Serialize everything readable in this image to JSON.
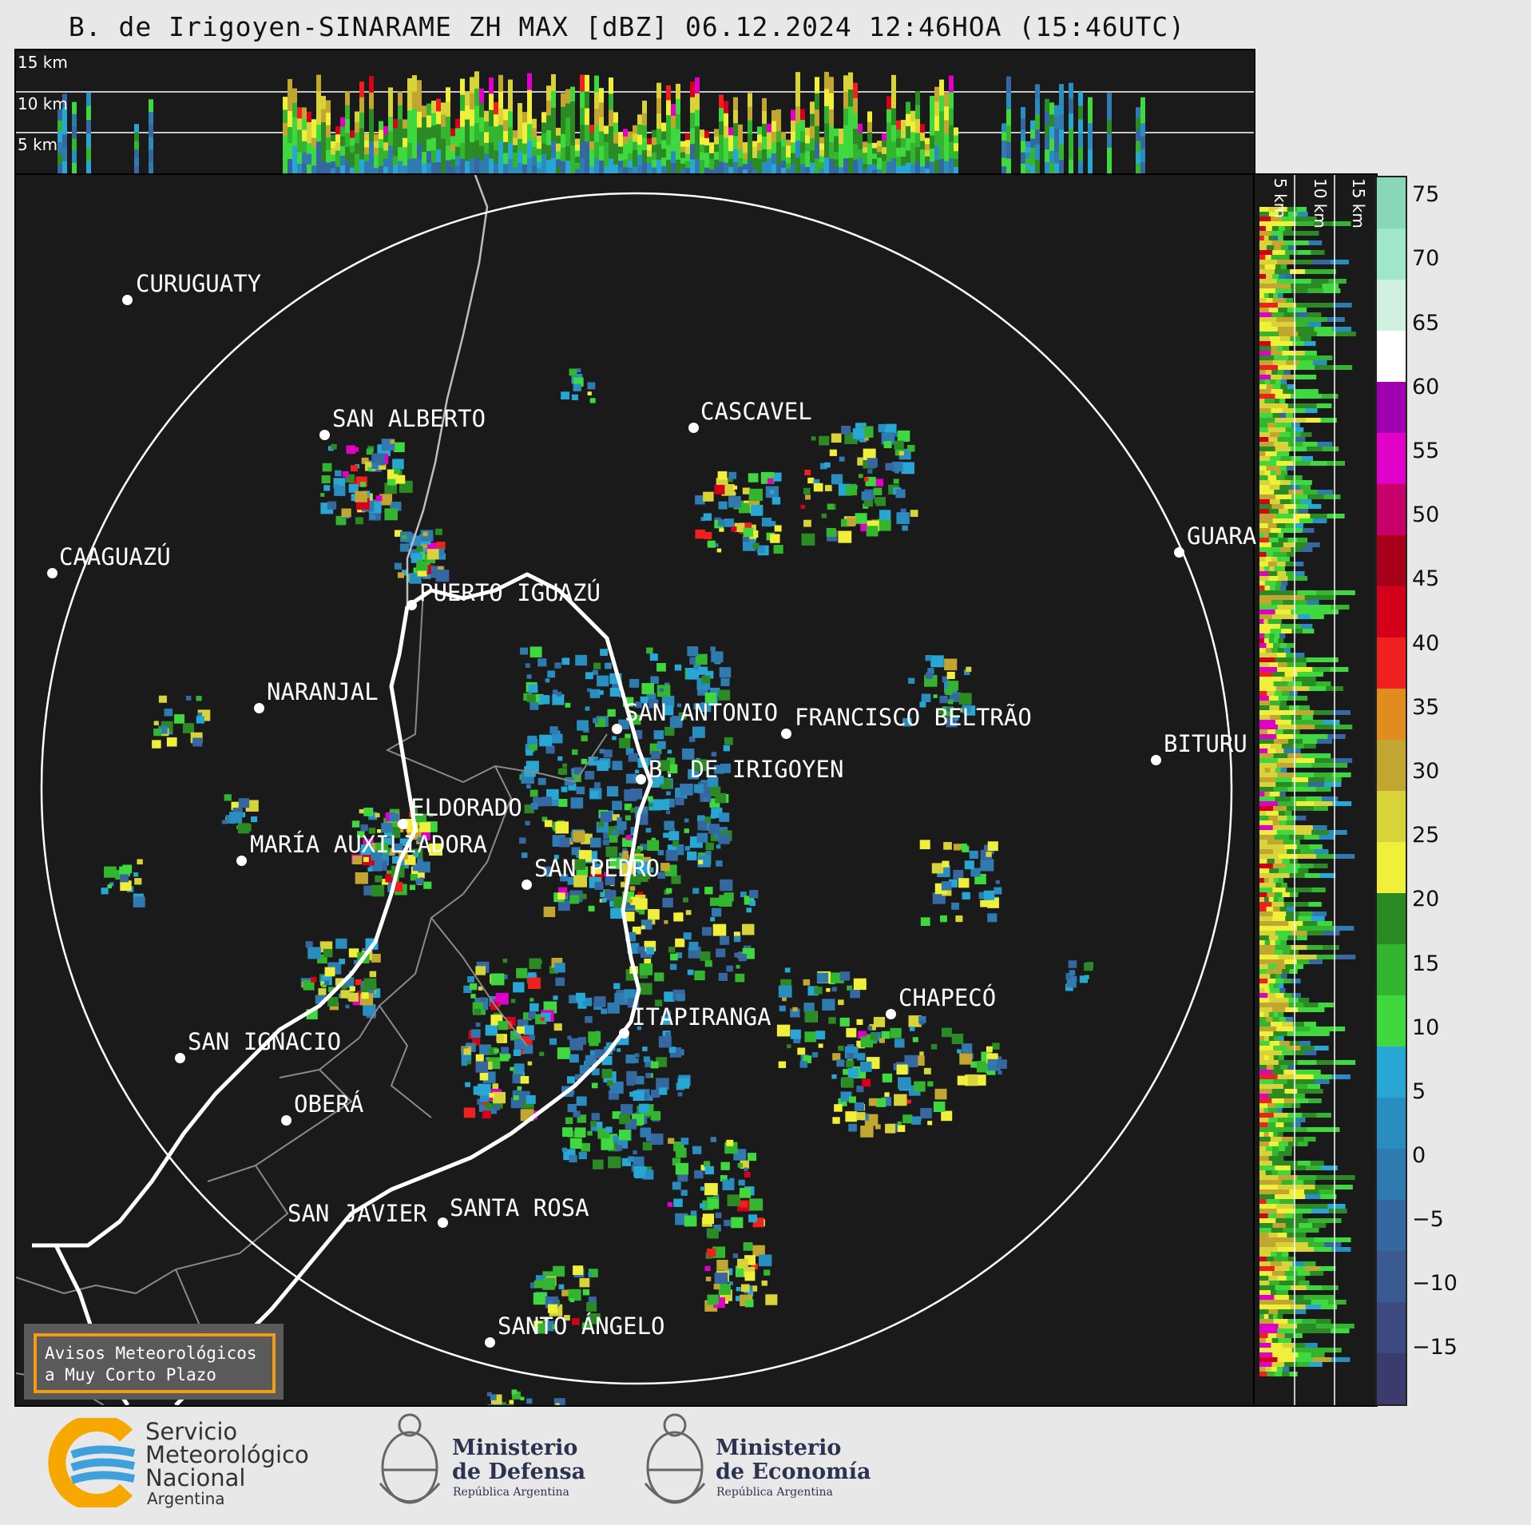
{
  "title": "B. de Irigoyen-SINARAME ZH MAX [dBZ] 06.12.2024 12:46HOA (15:46UTC)",
  "top_panel": {
    "height_labels": [
      "15 km",
      "10 km",
      "5 km"
    ]
  },
  "side_panel": {
    "height_labels": [
      "5 km",
      "10 km",
      "15 km"
    ]
  },
  "colorbar": {
    "ticks": [
      "75",
      "70",
      "65",
      "60",
      "55",
      "50",
      "45",
      "40",
      "35",
      "30",
      "25",
      "20",
      "15",
      "10",
      "5",
      "0",
      "−5",
      "−10",
      "−15"
    ],
    "colors": [
      "#3b3b6e",
      "#3d4a82",
      "#3a5a91",
      "#3568a0",
      "#2f7bb0",
      "#2a8dc0",
      "#28a7d5",
      "#3fd93f",
      "#33b52f",
      "#2c8a25",
      "#f0ef3a",
      "#d9d33a",
      "#c2a632",
      "#e08c1e",
      "#f0201e",
      "#d5001a",
      "#a8001a",
      "#c8006a",
      "#e000c8",
      "#a000b0",
      "#ffffff",
      "#d0f0e0",
      "#a0e6c8",
      "#88d8b8"
    ]
  },
  "cities": [
    {
      "name": "CURUGUATY"
    },
    {
      "name": "SAN ALBERTO"
    },
    {
      "name": "CASCAVEL"
    },
    {
      "name": "CAAGUAZÚ"
    },
    {
      "name": "GUARA"
    },
    {
      "name": "PUERTO IGUAZÚ"
    },
    {
      "name": "NARANJAL"
    },
    {
      "name": "SAN ANTONIO"
    },
    {
      "name": "FRANCISCO BELTRÃO"
    },
    {
      "name": "BITURU"
    },
    {
      "name": "B. DE IRIGOYEN"
    },
    {
      "name": "ELDORADO"
    },
    {
      "name": "MARÍA AUXILIADORA"
    },
    {
      "name": "SAN PEDRO"
    },
    {
      "name": "CHAPECÓ"
    },
    {
      "name": "ITAPIRANGA"
    },
    {
      "name": "SAN IGNACIO"
    },
    {
      "name": "OBERÁ"
    },
    {
      "name": "SAN JAVIER"
    },
    {
      "name": "SANTA ROSA"
    },
    {
      "name": "SANTO ÁNGELO"
    }
  ],
  "notice": {
    "line1": "Avisos Meteorológicos",
    "line2": "a Muy Corto Plazo"
  },
  "logos": {
    "smn": {
      "line1": "Servicio",
      "line2": "Meteorológico",
      "line3": "Nacional",
      "line4": "Argentina"
    },
    "defensa": {
      "line1": "Ministerio",
      "line2": "de Defensa",
      "line3": "República Argentina"
    },
    "economia": {
      "line1": "Ministerio",
      "line2": "de Economía",
      "line3": "República Argentina"
    }
  }
}
